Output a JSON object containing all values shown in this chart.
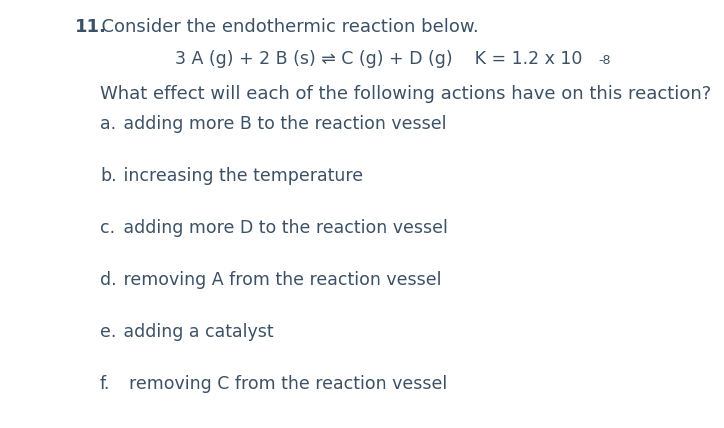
{
  "bg_color": "#ffffff",
  "text_color": "#3d5166",
  "orange_color": "#c8541a",
  "question_number": "11.",
  "line1": "  Consider the endothermic reaction below.",
  "equation": "3 A (g) + 2 B (s) ⇌ C (g) + D (g)    K = 1.2 x 10",
  "K_exp": "-8",
  "question_line": "What effect will each of the following actions have on this reaction?",
  "items": [
    [
      "a.",
      " adding more B to the reaction vessel"
    ],
    [
      "b.",
      " increasing the temperature"
    ],
    [
      "c.",
      " adding more D to the reaction vessel"
    ],
    [
      "d.",
      " removing A from the reaction vessel"
    ],
    [
      "e.",
      " adding a catalyst"
    ],
    [
      "f.",
      "  removing C from the reaction vessel"
    ]
  ],
  "fig_width": 7.24,
  "fig_height": 4.28,
  "dpi": 100
}
